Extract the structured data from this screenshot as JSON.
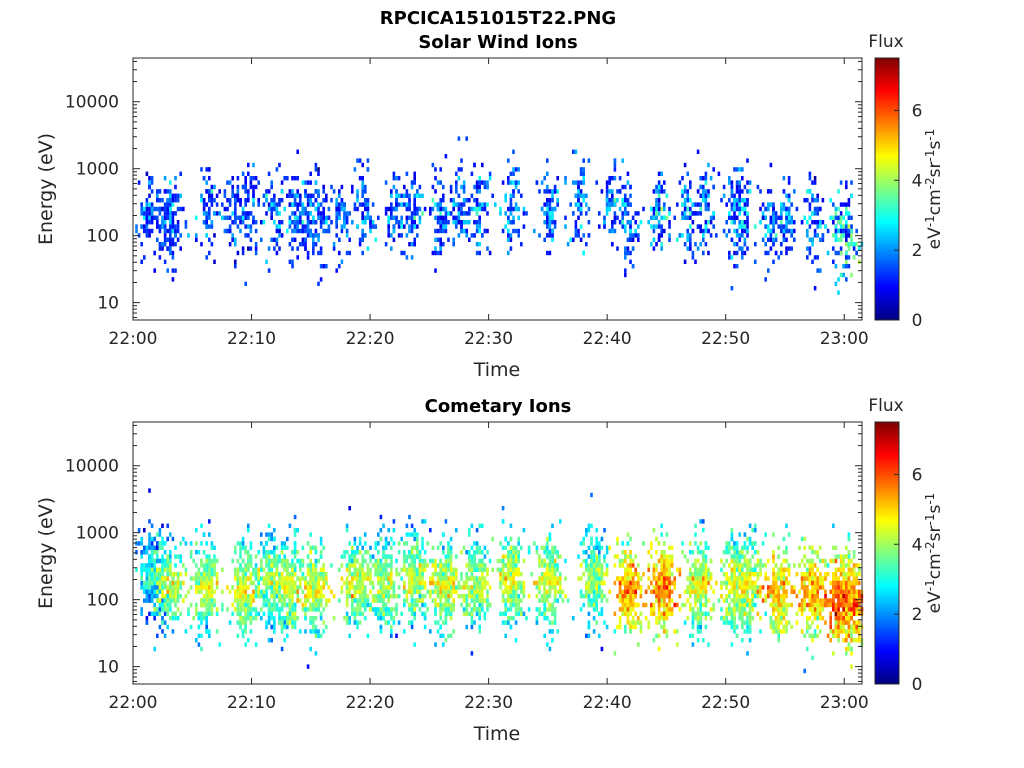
{
  "figure_title": "RPCICA151015T22.PNG",
  "colormap": [
    "#00007f",
    "#0000ff",
    "#007fff",
    "#00ffff",
    "#7fff7f",
    "#ffff00",
    "#ff7f00",
    "#ff0000",
    "#7f0000"
  ],
  "chart_data": [
    {
      "type": "heatmap",
      "title": "Solar Wind Ions",
      "xlabel": "Time",
      "ylabel": "Energy (eV)",
      "x_ticks": [
        "22:00",
        "22:10",
        "22:20",
        "22:30",
        "22:40",
        "22:50",
        "23:00"
      ],
      "x_tick_minutes": [
        0,
        10,
        20,
        30,
        40,
        50,
        60
      ],
      "xlim_minutes": [
        0,
        61.5
      ],
      "y_ticks": [
        "10",
        "100",
        "1000",
        "10000"
      ],
      "y_tick_values": [
        10,
        100,
        1000,
        10000
      ],
      "ylim": [
        5.5,
        45000
      ],
      "yscale": "log",
      "colorbar": {
        "title": "Flux",
        "label": "eV-1cm-2sr-1s-1",
        "ticks": [
          "0",
          "2",
          "4",
          "6"
        ],
        "range": [
          0,
          7.5
        ]
      },
      "bursts": [
        {
          "t": 1.2,
          "e": 230,
          "level": 1.8
        },
        {
          "t": 2.6,
          "e": 200,
          "level": 2.0
        },
        {
          "t": 3.2,
          "e": 190,
          "level": 2.2
        },
        {
          "t": 6.2,
          "e": 260,
          "level": 2.2
        },
        {
          "t": 8.5,
          "e": 210,
          "level": 2.0
        },
        {
          "t": 9.6,
          "e": 230,
          "level": 2.1
        },
        {
          "t": 11.8,
          "e": 220,
          "level": 2.2
        },
        {
          "t": 13.6,
          "e": 260,
          "level": 2.3
        },
        {
          "t": 14.6,
          "e": 200,
          "level": 2.0
        },
        {
          "t": 15.6,
          "e": 190,
          "level": 2.1
        },
        {
          "t": 17.5,
          "e": 210,
          "level": 2.0
        },
        {
          "t": 19.5,
          "e": 260,
          "level": 2.4
        },
        {
          "t": 22.0,
          "e": 290,
          "level": 2.2
        },
        {
          "t": 23.6,
          "e": 280,
          "level": 2.5
        },
        {
          "t": 25.8,
          "e": 210,
          "level": 2.3
        },
        {
          "t": 27.5,
          "e": 270,
          "level": 2.2
        },
        {
          "t": 29.2,
          "e": 280,
          "level": 2.3
        },
        {
          "t": 31.8,
          "e": 290,
          "level": 2.6
        },
        {
          "t": 35.0,
          "e": 220,
          "level": 2.2
        },
        {
          "t": 37.5,
          "e": 280,
          "level": 2.5
        },
        {
          "t": 40.2,
          "e": 300,
          "level": 2.5
        },
        {
          "t": 41.8,
          "e": 190,
          "level": 2.3
        },
        {
          "t": 44.3,
          "e": 230,
          "level": 2.8
        },
        {
          "t": 46.8,
          "e": 210,
          "level": 2.6
        },
        {
          "t": 48.2,
          "e": 220,
          "level": 2.5
        },
        {
          "t": 50.6,
          "e": 200,
          "level": 2.4
        },
        {
          "t": 51.2,
          "e": 230,
          "level": 2.5
        },
        {
          "t": 53.6,
          "e": 170,
          "level": 2.3
        },
        {
          "t": 55.0,
          "e": 210,
          "level": 2.2
        },
        {
          "t": 57.3,
          "e": 150,
          "level": 2.4
        },
        {
          "t": 59.5,
          "e": 130,
          "level": 3.3
        },
        {
          "t": 60.3,
          "e": 110,
          "level": 3.6
        }
      ]
    },
    {
      "type": "heatmap",
      "title": "Cometary Ions",
      "xlabel": "Time",
      "ylabel": "Energy (eV)",
      "x_ticks": [
        "22:00",
        "22:10",
        "22:20",
        "22:30",
        "22:40",
        "22:50",
        "23:00"
      ],
      "x_tick_minutes": [
        0,
        10,
        20,
        30,
        40,
        50,
        60
      ],
      "xlim_minutes": [
        0,
        61.5
      ],
      "y_ticks": [
        "10",
        "100",
        "1000",
        "10000"
      ],
      "y_tick_values": [
        10,
        100,
        1000,
        10000
      ],
      "ylim": [
        5.5,
        45000
      ],
      "yscale": "log",
      "colorbar": {
        "title": "Flux",
        "label": "eV-1cm-2sr-1s-1",
        "ticks": [
          "0",
          "2",
          "4",
          "6"
        ],
        "range": [
          0,
          7.5
        ]
      },
      "bursts": [
        {
          "t": 1.5,
          "e": 230,
          "level": 3.2
        },
        {
          "t": 3.0,
          "e": 180,
          "level": 4.3
        },
        {
          "t": 6.0,
          "e": 170,
          "level": 4.3
        },
        {
          "t": 9.3,
          "e": 160,
          "level": 4.6
        },
        {
          "t": 11.5,
          "e": 200,
          "level": 4.0
        },
        {
          "t": 13.0,
          "e": 170,
          "level": 4.5
        },
        {
          "t": 15.3,
          "e": 150,
          "level": 4.6
        },
        {
          "t": 18.8,
          "e": 200,
          "level": 4.4
        },
        {
          "t": 21.2,
          "e": 190,
          "level": 4.2
        },
        {
          "t": 23.7,
          "e": 220,
          "level": 4.3
        },
        {
          "t": 26.2,
          "e": 170,
          "level": 4.6
        },
        {
          "t": 28.8,
          "e": 180,
          "level": 4.3
        },
        {
          "t": 31.9,
          "e": 220,
          "level": 4.4
        },
        {
          "t": 35.0,
          "e": 190,
          "level": 4.5
        },
        {
          "t": 38.8,
          "e": 210,
          "level": 4.2
        },
        {
          "t": 41.8,
          "e": 150,
          "level": 5.6
        },
        {
          "t": 44.6,
          "e": 170,
          "level": 5.6
        },
        {
          "t": 47.6,
          "e": 170,
          "level": 4.7
        },
        {
          "t": 50.6,
          "e": 170,
          "level": 4.6
        },
        {
          "t": 51.8,
          "e": 180,
          "level": 4.7
        },
        {
          "t": 54.4,
          "e": 140,
          "level": 5.3
        },
        {
          "t": 57.2,
          "e": 140,
          "level": 5.4
        },
        {
          "t": 59.6,
          "e": 110,
          "level": 6.1
        },
        {
          "t": 60.6,
          "e": 100,
          "level": 5.8
        }
      ]
    }
  ]
}
